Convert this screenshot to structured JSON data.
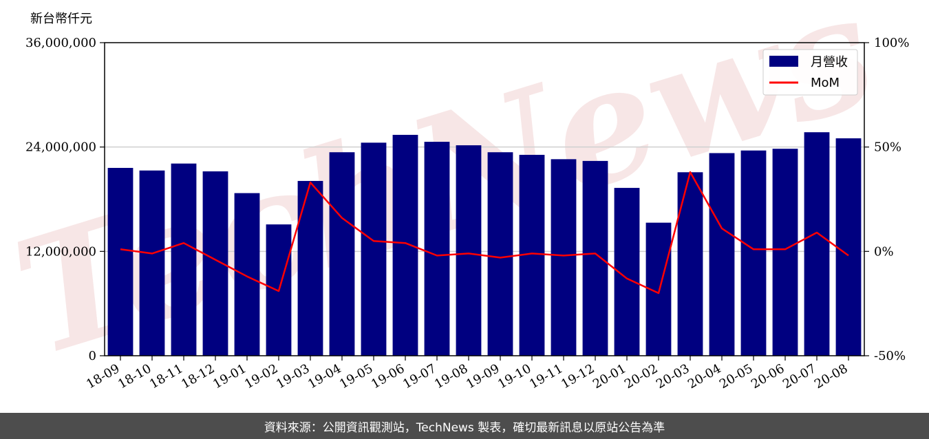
{
  "chart_data": {
    "type": "bar",
    "unit_label": "新台幣仟元",
    "categories": [
      "18-09",
      "18-10",
      "18-11",
      "18-12",
      "19-01",
      "19-02",
      "19-03",
      "19-04",
      "19-05",
      "19-06",
      "19-07",
      "19-08",
      "19-09",
      "19-10",
      "19-11",
      "19-12",
      "20-01",
      "20-02",
      "20-03",
      "20-04",
      "20-05",
      "20-06",
      "20-07",
      "20-08"
    ],
    "series": [
      {
        "name": "月營收",
        "axis": "left",
        "color": "#000080",
        "values": [
          21600000,
          21300000,
          22100000,
          21200000,
          18700000,
          15100000,
          20100000,
          23400000,
          24500000,
          25400000,
          24600000,
          24200000,
          23400000,
          23100000,
          22600000,
          22400000,
          19300000,
          15300000,
          21100000,
          23300000,
          23600000,
          23800000,
          25700000,
          25000000
        ]
      },
      {
        "name": "MoM",
        "axis": "right",
        "type": "line",
        "color": "#ff0000",
        "values": [
          1,
          -1,
          4,
          -4,
          -12,
          -19,
          33,
          16,
          5,
          4,
          -2,
          -1,
          -3,
          -1,
          -2,
          -1,
          -13,
          -20,
          38,
          11,
          1,
          1,
          9,
          -2
        ]
      }
    ],
    "y_left": {
      "range": [
        0,
        36000000
      ],
      "ticks": [
        0,
        12000000,
        24000000,
        36000000
      ],
      "tick_labels": [
        "0",
        "12,000,000",
        "24,000,000",
        "36,000,000"
      ]
    },
    "y_right": {
      "range": [
        -50,
        100
      ],
      "ticks": [
        -50,
        0,
        50,
        100
      ],
      "tick_labels": [
        "-50%",
        "0%",
        "50%",
        "100%"
      ]
    },
    "grid": "horizontal",
    "legend_position": "top-right",
    "watermark": "TechNews"
  },
  "footer_text": "資料來源：公開資訊觀測站，TechNews 製表，確切最新訊息以原站公告為準"
}
